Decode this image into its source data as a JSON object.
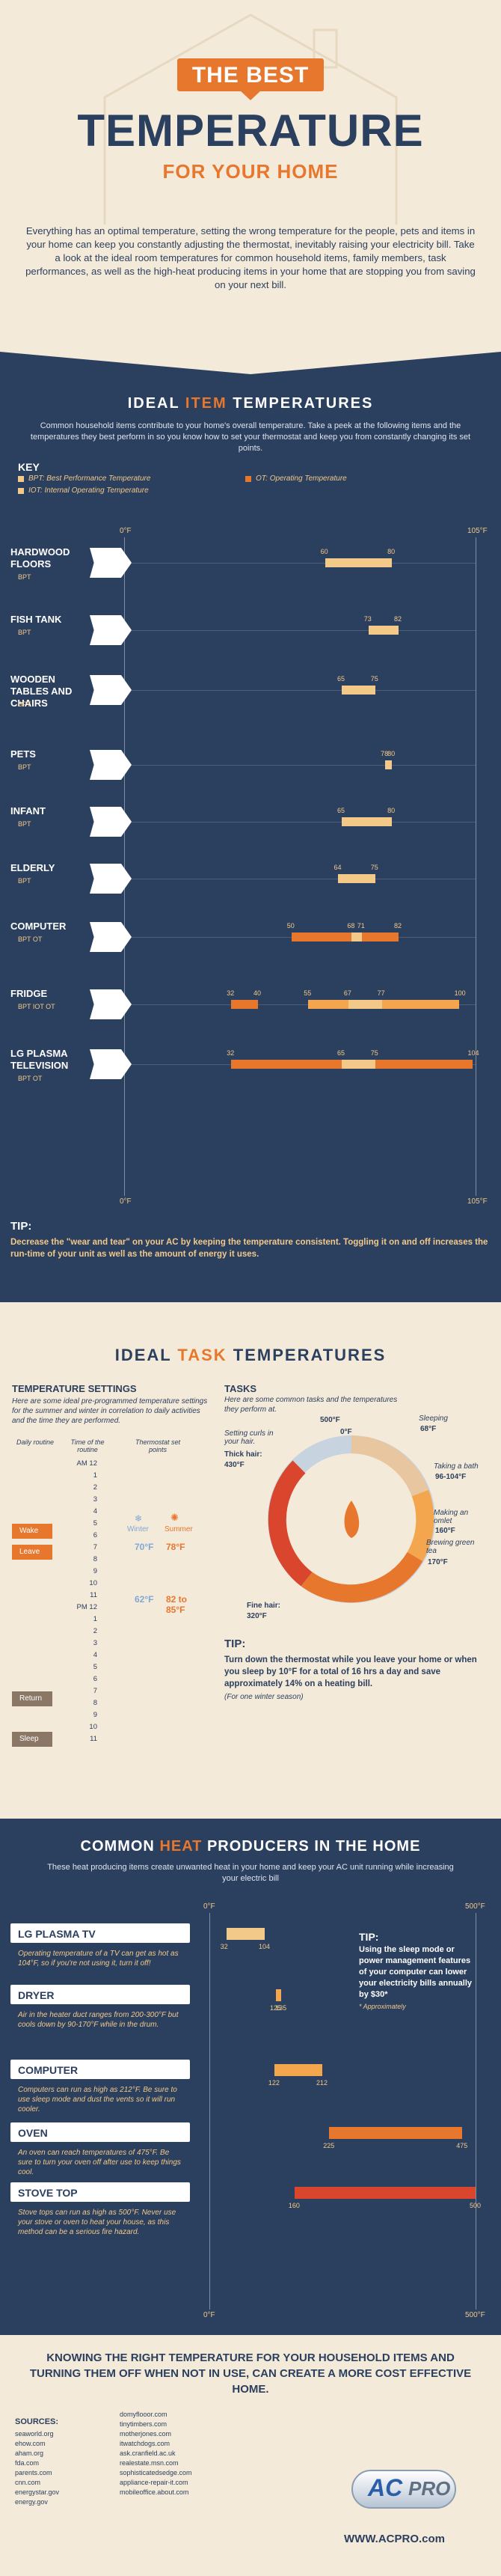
{
  "header": {
    "title_top": "THE BEST",
    "title_main": "TEMPERATURE",
    "title_sub": "FOR YOUR HOME",
    "intro": "Everything has an optimal temperature, setting the wrong temperature for the people, pets and items in your home can keep you constantly adjusting the thermostat, inevitably raising your electricity bill. Take a look at the ideal room temperatures for common household items, family members, task performances, as well as the high-heat producing items in your home that are stopping you from saving on your next bill."
  },
  "item_section": {
    "heading_a": "IDEAL ",
    "heading_b": "ITEM",
    "heading_c": " TEMPERATURES",
    "intro": "Common household items contribute to your home's overall temperature. Take a peek at the following items and the temperatures they best perform in so you know how to set your thermostat and keep you from constantly changing its set points.",
    "key_title": "KEY",
    "key_bpt": "BPT: Best Performance Temperature",
    "key_iot": "IOT: Internal Operating Temperature",
    "key_ot": "OT: Operating Temperature",
    "axis_min": "0°F",
    "axis_max": "105°F",
    "items": [
      {
        "name": "HARDWOOD FLOORS",
        "tags": "BPT",
        "values": [
          "60",
          "80"
        ]
      },
      {
        "name": "FISH TANK",
        "tags": "BPT",
        "values": [
          "73",
          "82"
        ]
      },
      {
        "name": "WOODEN TABLES AND CHAIRS",
        "tags": "BPT",
        "values": [
          "65",
          "75"
        ]
      },
      {
        "name": "PETS",
        "tags": "BPT",
        "values": [
          "78",
          "80"
        ]
      },
      {
        "name": "INFANT",
        "tags": "BPT",
        "values": [
          "65",
          "80"
        ]
      },
      {
        "name": "ELDERLY",
        "tags": "BPT",
        "values": [
          "64",
          "75"
        ]
      },
      {
        "name": "COMPUTER",
        "tags": "BPT  OT",
        "values": [
          "68",
          "71",
          "50",
          "82"
        ]
      },
      {
        "name": "FRIDGE",
        "tags": "BPT IOT OT",
        "values": [
          "67",
          "77",
          "32",
          "40",
          "55",
          "100"
        ]
      },
      {
        "name": "LG PLASMA TELEVISION",
        "tags": "BPT  OT",
        "values": [
          "65",
          "75",
          "32",
          "104"
        ]
      }
    ],
    "tip_title": "TIP:",
    "tip_text": "Decrease the \"wear and tear\" on your AC by keeping the temperature consistent. Toggling it on and off increases the run-time of your unit as well as the amount of energy it uses."
  },
  "task_section": {
    "heading_a": "IDEAL ",
    "heading_b": "TASK",
    "heading_c": " TEMPERATURES",
    "settings_title": "TEMPERATURE SETTINGS",
    "settings_text": "Here are some ideal pre-programmed temperature settings for the summer and winter in correlation to daily activities and the time they are performed.",
    "col1": "Daily routine",
    "col2": "Time of the routine",
    "col3": "Thermostat set points",
    "routines": [
      "Wake",
      "Leave",
      "Return",
      "Sleep"
    ],
    "winter_label": "Winter",
    "summer_label": "Summer",
    "wake_winter": "70°F",
    "wake_summer": "78°F",
    "leave_winter": "62°F",
    "leave_summer": "82 to 85°F",
    "hours_am": [
      "AM 12",
      "1",
      "2",
      "3",
      "4",
      "5",
      "6",
      "7",
      "8",
      "9",
      "10",
      "11"
    ],
    "hours_pm": [
      "PM 12",
      "1",
      "2",
      "3",
      "4",
      "5",
      "6",
      "7",
      "8",
      "9",
      "10",
      "11"
    ],
    "tasks_title": "TASKS",
    "tasks_text": "Here are some common tasks and the temperatures they perform at.",
    "tasks": [
      {
        "label": "500°F",
        "desc": ""
      },
      {
        "label": "Sleeping",
        "desc": "68°F"
      },
      {
        "label": "Taking a bath",
        "desc": "96-104°F"
      },
      {
        "label": "Making an omlet",
        "desc": "160°F"
      },
      {
        "label": "Brewing green tea",
        "desc": "170°F"
      },
      {
        "label": "Fine hair:",
        "desc": "320°F"
      },
      {
        "label": "Setting curls in your hair.",
        "desc": ""
      },
      {
        "label": "Thick hair:",
        "desc": "430°F"
      }
    ],
    "circle_zero": "0°F",
    "tip_title": "TIP:",
    "tip_text": "Turn down the thermostat while you leave your home or when you sleep by 10°F for a total of 16 hrs a day and save approximately 14% on a heating bill.",
    "tip_note": "(For one winter season)"
  },
  "heat_section": {
    "heading_a": "COMMON ",
    "heading_b": "HEAT",
    "heading_c": " PRODUCERS IN THE HOME",
    "intro": "These heat producing items create unwanted heat in your home and keep your AC unit running while increasing your electric bill",
    "axis_min": "0°F",
    "axis_max": "500°F",
    "items": [
      {
        "name": "LG PLASMA TV",
        "desc": "Operating temperature of a TV can get as hot as 104°F, so if you're not using it, turn it off!",
        "low": "32",
        "high": "104"
      },
      {
        "name": "DRYER",
        "desc": "Air in the heater duct ranges from 200-300°F but cools down by 90-170°F while in the drum.",
        "low": "125",
        "high": "135"
      },
      {
        "name": "COMPUTER",
        "desc": "Computers can run as high as 212°F. Be sure to use sleep mode and dust the vents so it will run cooler.",
        "low": "122",
        "high": "212"
      },
      {
        "name": "OVEN",
        "desc": "An oven can reach temperatures of 475°F. Be sure to turn your oven off after use to keep things cool.",
        "low": "225",
        "high": "475"
      },
      {
        "name": "STOVE TOP",
        "desc": "Stove tops can run as high as 500°F. Never use your stove or oven to heat your house, as this method can be a serious fire hazard.",
        "low": "160",
        "high": "500"
      }
    ],
    "tip_title": "TIP:",
    "tip_text": "Using the sleep mode or power management features of your computer can lower your electricity bills annually by $30*",
    "tip_note": "* Approximately"
  },
  "footer": {
    "conclusion": "KNOWING THE RIGHT TEMPERATURE FOR YOUR HOUSEHOLD ITEMS AND TURNING THEM OFF WHEN NOT IN USE, CAN CREATE A MORE COST EFFECTIVE HOME.",
    "sources_title": "SOURCES:",
    "sources_col1": [
      "seaworld.org",
      "ehow.com",
      "aham.org",
      "fda.com",
      "parents.com",
      "cnn.com",
      "energystar.gov",
      "energy.gov"
    ],
    "sources_col2": [
      "domyflooor.com",
      "tinytimbers.com",
      "motherjones.com",
      "itwatchdogs.com",
      "ask.cranfield.ac.uk",
      "realestate.msn.com",
      "sophisticatedsedge.com",
      "appliance-repair-it.com",
      "mobileoffice.about.com"
    ],
    "logo_a": "AC",
    "logo_b": "PRO",
    "website": "WWW.ACPRO.com"
  },
  "colors": {
    "navy": "#2b3f5e",
    "orange": "#e8772e",
    "light_orange": "#f3a64e",
    "cream": "#f4ead9",
    "red": "#d9452d"
  }
}
